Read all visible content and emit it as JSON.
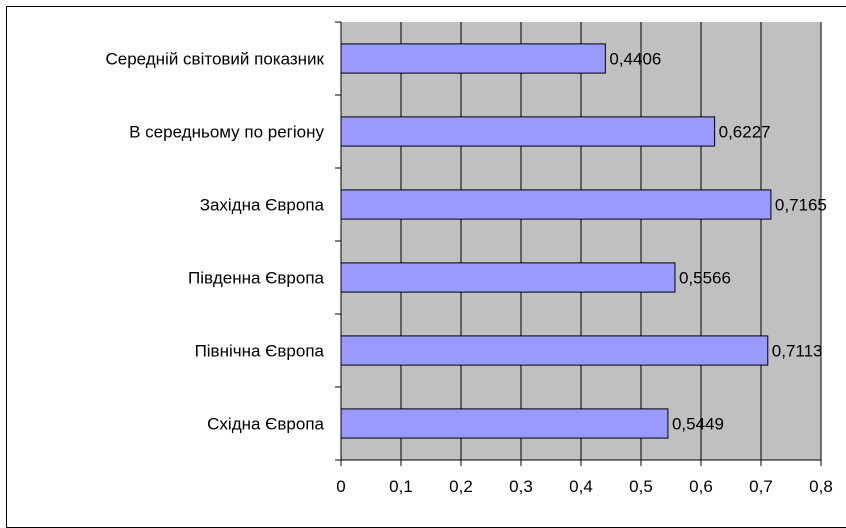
{
  "chart_data": {
    "type": "bar",
    "orientation": "horizontal",
    "categories": [
      "Середній світовий показник",
      "В середньому по регіону",
      "Західна Європа",
      "Південна Європа",
      "Північна Європа",
      "Східна Європа"
    ],
    "values": [
      0.4406,
      0.6227,
      0.7165,
      0.5566,
      0.7113,
      0.5449
    ],
    "value_labels": [
      "0,4406",
      "0,6227",
      "0,7165",
      "0,5566",
      "0,7113",
      "0,5449"
    ],
    "xlim": [
      0,
      0.8
    ],
    "x_ticks": [
      0,
      0.1,
      0.2,
      0.3,
      0.4,
      0.5,
      0.6,
      0.7,
      0.8
    ],
    "x_tick_labels": [
      "0",
      "0,1",
      "0,2",
      "0,3",
      "0,4",
      "0,5",
      "0,6",
      "0,7",
      "0,8"
    ],
    "grid": "vertical",
    "bar_color": "#9999ff",
    "plot_background": "#c0c0c0",
    "title": "",
    "xlabel": "",
    "ylabel": ""
  }
}
